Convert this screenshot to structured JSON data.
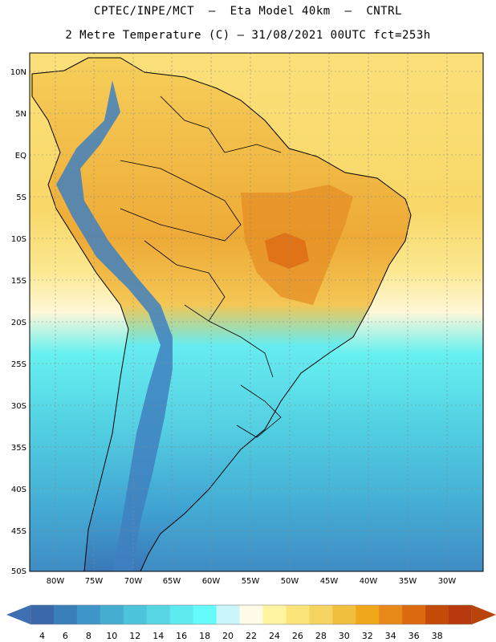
{
  "header": {
    "line1": "CPTEC/INPE/MCT  –  Eta Model 40km  –  CNTRL",
    "line2": "2 Metre Temperature (C) – 31/08/2021 00UTC fct=253h"
  },
  "axes": {
    "lat_labels": [
      "10N",
      "5N",
      "EQ",
      "5S",
      "10S",
      "15S",
      "20S",
      "25S",
      "30S",
      "35S",
      "40S",
      "45S",
      "50S"
    ],
    "lon_labels": [
      "80W",
      "75W",
      "70W",
      "65W",
      "60W",
      "55W",
      "50W",
      "45W",
      "40W",
      "35W",
      "30W"
    ]
  },
  "colorbar": {
    "labels": [
      "4",
      "6",
      "8",
      "10",
      "12",
      "14",
      "16",
      "18",
      "20",
      "22",
      "24",
      "26",
      "28",
      "30",
      "32",
      "34",
      "36",
      "38"
    ],
    "colors": [
      "#3a68a8",
      "#3a7fb8",
      "#3f97c9",
      "#45adcf",
      "#4ec3dc",
      "#58d5e3",
      "#5eeaef",
      "#66fbfb",
      "#c9f5fb",
      "#fffbe6",
      "#fff5a0",
      "#fbe57a",
      "#f5d462",
      "#f0bf3e",
      "#f0a81a",
      "#e88a1a",
      "#dc6a10",
      "#c44a08",
      "#b83a0c"
    ],
    "left_color": "#3f6fb0",
    "right_color": "#b8440c"
  },
  "map": {
    "ocean_gradient": [
      "#fbe07a",
      "#fbe07a",
      "#fff5c8",
      "#66f0f0",
      "#5ad8e6",
      "#49b8d8",
      "#3f90c4"
    ],
    "land_warm": "#f5d060",
    "land_hot": "#e89a2c",
    "andes": "#3f7dc0"
  }
}
